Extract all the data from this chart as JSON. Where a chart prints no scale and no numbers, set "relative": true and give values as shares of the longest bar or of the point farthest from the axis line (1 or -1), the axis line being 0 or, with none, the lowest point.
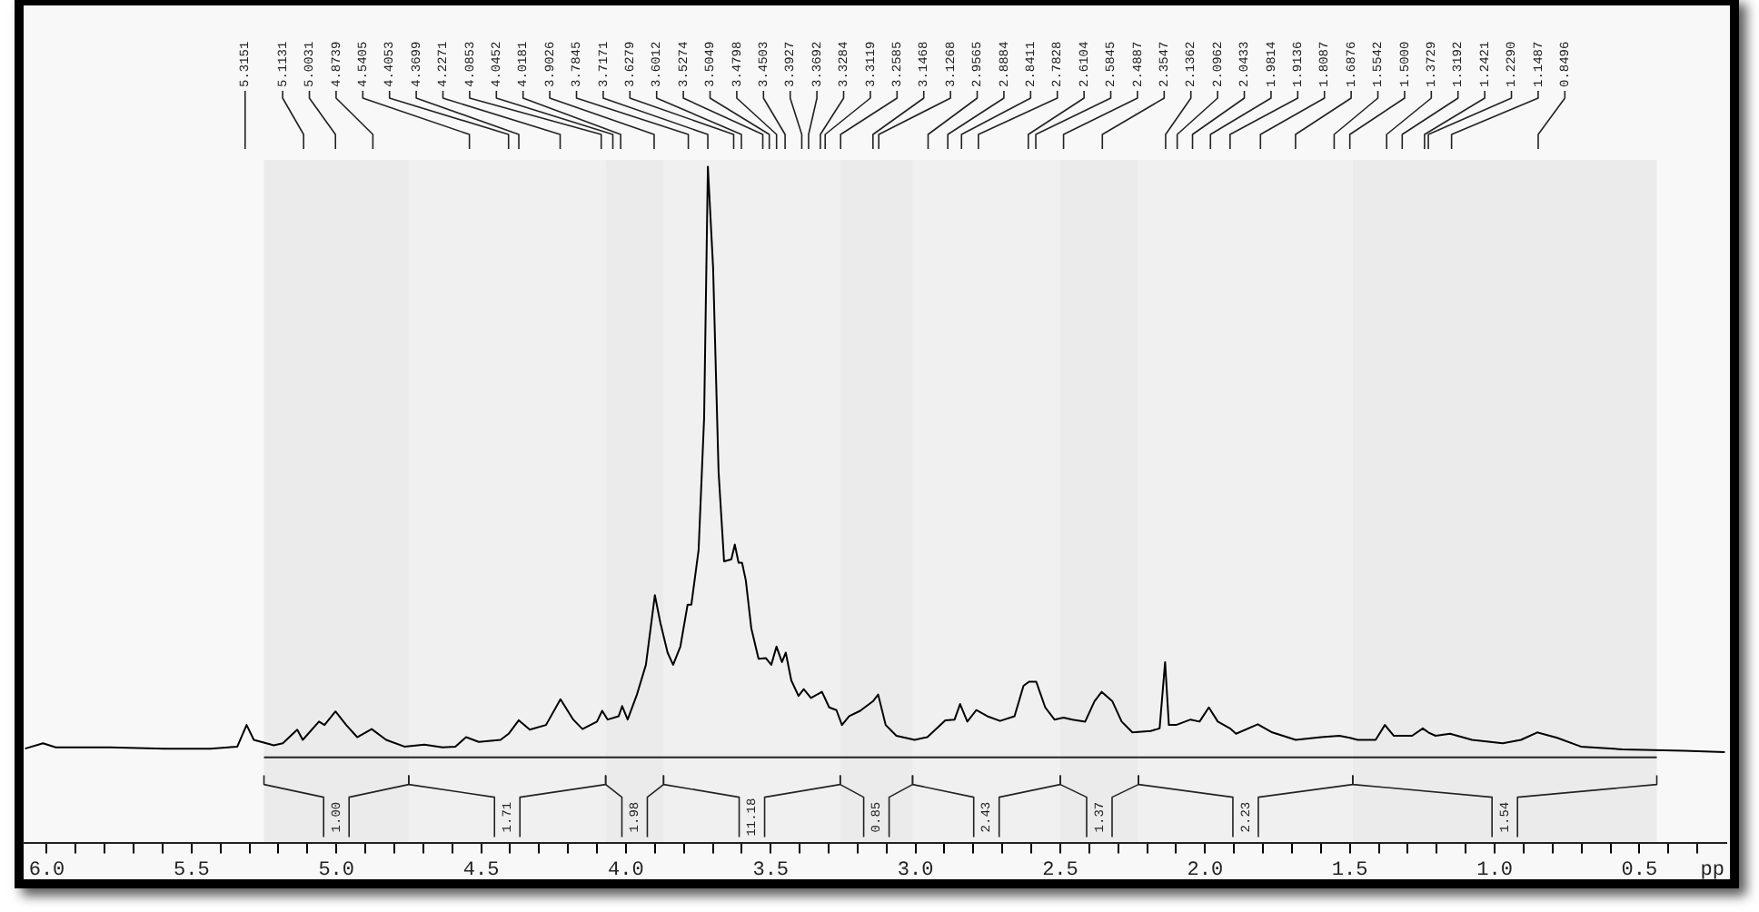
{
  "chart_data": {
    "type": "line",
    "relative": true,
    "series": [
      {
        "color": "#000000",
        "x": [
          6.075,
          6.013,
          5.969,
          5.781,
          5.592,
          5.436,
          5.373,
          5.342,
          5.31,
          5.285,
          5.216,
          5.185,
          5.135,
          5.116,
          5.06,
          5.041,
          5.003,
          4.966,
          4.928,
          4.878,
          4.828,
          4.765,
          4.696,
          4.633,
          4.589,
          4.552,
          4.508,
          4.433,
          4.405,
          4.37,
          4.332,
          4.276,
          4.226,
          4.182,
          4.15,
          4.1,
          4.082,
          4.063,
          4.025,
          4.013,
          3.994,
          3.962,
          3.931,
          3.9,
          3.881,
          3.856,
          3.837,
          3.812,
          3.787,
          3.774,
          3.749,
          3.73,
          3.717,
          3.699,
          3.68,
          3.661,
          3.636,
          3.624,
          3.611,
          3.599,
          3.586,
          3.567,
          3.542,
          3.517,
          3.498,
          3.48,
          3.461,
          3.448,
          3.429,
          3.404,
          3.386,
          3.361,
          3.323,
          3.298,
          3.273,
          3.254,
          3.229,
          3.191,
          3.147,
          3.129,
          3.103,
          3.066,
          3.003,
          2.959,
          2.897,
          2.865,
          2.846,
          2.821,
          2.79,
          2.752,
          2.708,
          2.658,
          2.627,
          2.608,
          2.583,
          2.552,
          2.52,
          2.489,
          2.458,
          2.414,
          2.382,
          2.357,
          2.32,
          2.288,
          2.251,
          2.188,
          2.157,
          2.138,
          2.125,
          2.1,
          2.05,
          2.019,
          1.987,
          1.956,
          1.914,
          1.893,
          1.818,
          1.768,
          1.687,
          1.599,
          1.536,
          1.5,
          1.473,
          1.411,
          1.379,
          1.348,
          1.319,
          1.285,
          1.248,
          1.229,
          1.204,
          1.154,
          1.078,
          0.972,
          0.909,
          0.853,
          0.784,
          0.702,
          0.558,
          0.345,
          0.205
        ],
        "values": [
          0.139,
          0.147,
          0.141,
          0.141,
          0.139,
          0.139,
          0.141,
          0.142,
          0.174,
          0.152,
          0.144,
          0.147,
          0.167,
          0.152,
          0.179,
          0.174,
          0.194,
          0.174,
          0.156,
          0.168,
          0.152,
          0.142,
          0.145,
          0.141,
          0.142,
          0.156,
          0.149,
          0.152,
          0.161,
          0.181,
          0.167,
          0.174,
          0.212,
          0.182,
          0.168,
          0.179,
          0.195,
          0.182,
          0.187,
          0.202,
          0.182,
          0.219,
          0.263,
          0.366,
          0.325,
          0.281,
          0.263,
          0.29,
          0.352,
          0.352,
          0.433,
          0.628,
          1.0,
          0.851,
          0.548,
          0.416,
          0.419,
          0.441,
          0.414,
          0.414,
          0.388,
          0.317,
          0.272,
          0.273,
          0.263,
          0.29,
          0.267,
          0.281,
          0.24,
          0.217,
          0.227,
          0.214,
          0.223,
          0.2,
          0.196,
          0.174,
          0.187,
          0.195,
          0.209,
          0.219,
          0.174,
          0.158,
          0.152,
          0.156,
          0.181,
          0.182,
          0.205,
          0.179,
          0.196,
          0.187,
          0.18,
          0.187,
          0.232,
          0.238,
          0.238,
          0.2,
          0.182,
          0.185,
          0.182,
          0.179,
          0.209,
          0.223,
          0.209,
          0.179,
          0.163,
          0.165,
          0.169,
          0.267,
          0.174,
          0.174,
          0.182,
          0.179,
          0.2,
          0.179,
          0.169,
          0.161,
          0.175,
          0.163,
          0.152,
          0.156,
          0.158,
          0.155,
          0.152,
          0.152,
          0.174,
          0.158,
          0.158,
          0.158,
          0.169,
          0.163,
          0.158,
          0.161,
          0.152,
          0.147,
          0.152,
          0.163,
          0.155,
          0.142,
          0.138,
          0.136,
          0.134
        ]
      },
      {
        "color": "#222222",
        "x": [
          5.25,
          0.44
        ],
        "values": [
          0.126,
          0.126
        ]
      }
    ],
    "xlim": [
      6.08,
      0.2
    ],
    "xticks": [
      {
        "value": 6,
        "label": "6.0"
      },
      {
        "value": 5.9,
        "label": null
      },
      {
        "value": 5.8,
        "label": null
      },
      {
        "value": 5.7,
        "label": null
      },
      {
        "value": 5.6,
        "label": null
      },
      {
        "value": 5.5,
        "label": "5.5"
      },
      {
        "value": 5.4,
        "label": null
      },
      {
        "value": 5.3,
        "label": null
      },
      {
        "value": 5.2,
        "label": null
      },
      {
        "value": 5.1,
        "label": null
      },
      {
        "value": 5,
        "label": "5.0"
      },
      {
        "value": 4.9,
        "label": null
      },
      {
        "value": 4.8,
        "label": null
      },
      {
        "value": 4.7,
        "label": null
      },
      {
        "value": 4.6,
        "label": null
      },
      {
        "value": 4.5,
        "label": "4.5"
      },
      {
        "value": 4.4,
        "label": null
      },
      {
        "value": 4.3,
        "label": null
      },
      {
        "value": 4.2,
        "label": null
      },
      {
        "value": 4.1,
        "label": null
      },
      {
        "value": 4,
        "label": "4.0"
      },
      {
        "value": 3.9,
        "label": null
      },
      {
        "value": 3.8,
        "label": null
      },
      {
        "value": 3.7,
        "label": null
      },
      {
        "value": 3.6,
        "label": null
      },
      {
        "value": 3.5,
        "label": "3.5"
      },
      {
        "value": 3.4,
        "label": null
      },
      {
        "value": 3.3,
        "label": null
      },
      {
        "value": 3.2,
        "label": null
      },
      {
        "value": 3.1,
        "label": null
      },
      {
        "value": 3,
        "label": "3.0"
      },
      {
        "value": 2.9,
        "label": null
      },
      {
        "value": 2.8,
        "label": null
      },
      {
        "value": 2.7,
        "label": null
      },
      {
        "value": 2.6,
        "label": null
      },
      {
        "value": 2.5,
        "label": "2.5"
      },
      {
        "value": 2.4,
        "label": null
      },
      {
        "value": 2.3,
        "label": null
      },
      {
        "value": 2.2,
        "label": null
      },
      {
        "value": 2.1,
        "label": null
      },
      {
        "value": 2,
        "label": "2.0"
      },
      {
        "value": 1.9,
        "label": null
      },
      {
        "value": 1.8,
        "label": null
      },
      {
        "value": 1.7,
        "label": null
      },
      {
        "value": 1.6,
        "label": null
      },
      {
        "value": 1.5,
        "label": "1.5"
      },
      {
        "value": 1.4,
        "label": null
      },
      {
        "value": 1.3,
        "label": null
      },
      {
        "value": 1.2,
        "label": null
      },
      {
        "value": 1.1,
        "label": null
      },
      {
        "value": 1,
        "label": "1.0"
      },
      {
        "value": 0.9,
        "label": null
      },
      {
        "value": 0.8,
        "label": null
      },
      {
        "value": 0.7,
        "label": null
      },
      {
        "value": 0.6,
        "label": null
      },
      {
        "value": 0.5,
        "label": "0.5"
      },
      {
        "value": 0.4,
        "label": null
      },
      {
        "value": 0.3,
        "label": null
      }
    ],
    "xlabel": "pp",
    "annotations": [
      {
        "text": "5.3151",
        "x": 5.3151
      },
      {
        "text": "5.1131",
        "x": 5.1131
      },
      {
        "text": "5.0031",
        "x": 5.0031
      },
      {
        "text": "4.8739",
        "x": 4.8739
      },
      {
        "text": "4.5405",
        "x": 4.5405
      },
      {
        "text": "4.4053",
        "x": 4.4053
      },
      {
        "text": "4.3699",
        "x": 4.3699
      },
      {
        "text": "4.2271",
        "x": 4.2271
      },
      {
        "text": "4.0853",
        "x": 4.0853
      },
      {
        "text": "4.0452",
        "x": 4.0452
      },
      {
        "text": "4.0181",
        "x": 4.0181
      },
      {
        "text": "3.9026",
        "x": 3.9026
      },
      {
        "text": "3.7845",
        "x": 3.7845
      },
      {
        "text": "3.7171",
        "x": 3.7171
      },
      {
        "text": "3.6279",
        "x": 3.6279
      },
      {
        "text": "3.6012",
        "x": 3.6012
      },
      {
        "text": "3.5274",
        "x": 3.5274
      },
      {
        "text": "3.5049",
        "x": 3.5049
      },
      {
        "text": "3.4798",
        "x": 3.4798
      },
      {
        "text": "3.4503",
        "x": 3.4503
      },
      {
        "text": "3.3927",
        "x": 3.3927
      },
      {
        "text": "3.3692",
        "x": 3.3692
      },
      {
        "text": "3.3284",
        "x": 3.3284
      },
      {
        "text": "3.3119",
        "x": 3.3119
      },
      {
        "text": "3.2585",
        "x": 3.2585
      },
      {
        "text": "3.1468",
        "x": 3.1468
      },
      {
        "text": "3.1268",
        "x": 3.1268
      },
      {
        "text": "2.9565",
        "x": 2.9565
      },
      {
        "text": "2.8884",
        "x": 2.8884
      },
      {
        "text": "2.8411",
        "x": 2.8411
      },
      {
        "text": "2.7828",
        "x": 2.7828
      },
      {
        "text": "2.6104",
        "x": 2.6104
      },
      {
        "text": "2.5845",
        "x": 2.5845
      },
      {
        "text": "2.4887",
        "x": 2.4887
      },
      {
        "text": "2.3547",
        "x": 2.3547
      },
      {
        "text": "2.1362",
        "x": 2.1362
      },
      {
        "text": "2.0962",
        "x": 2.0962
      },
      {
        "text": "2.0433",
        "x": 2.0433
      },
      {
        "text": "1.9814",
        "x": 1.9814
      },
      {
        "text": "1.9136",
        "x": 1.9136
      },
      {
        "text": "1.8087",
        "x": 1.8087
      },
      {
        "text": "1.6876",
        "x": 1.6876
      },
      {
        "text": "1.5542",
        "x": 1.5542
      },
      {
        "text": "1.5000",
        "x": 1.5
      },
      {
        "text": "1.3729",
        "x": 1.3729
      },
      {
        "text": "1.3192",
        "x": 1.3192
      },
      {
        "text": "1.2421",
        "x": 1.2421
      },
      {
        "text": "1.2290",
        "x": 1.229
      },
      {
        "text": "1.1487",
        "x": 1.1487
      },
      {
        "text": "0.8496",
        "x": 0.8496
      }
    ],
    "bands": [
      {
        "axis": "x",
        "from": 5.25,
        "to": 4.75,
        "label": "1.00"
      },
      {
        "axis": "x",
        "from": 4.75,
        "to": 4.07,
        "label": "1.71"
      },
      {
        "axis": "x",
        "from": 4.07,
        "to": 3.87,
        "label": "1.98"
      },
      {
        "axis": "x",
        "from": 3.87,
        "to": 3.26,
        "label": "11.18"
      },
      {
        "axis": "x",
        "from": 3.26,
        "to": 3.01,
        "label": "0.85"
      },
      {
        "axis": "x",
        "from": 3.01,
        "to": 2.5,
        "label": "2.43"
      },
      {
        "axis": "x",
        "from": 2.5,
        "to": 2.23,
        "label": "1.37"
      },
      {
        "axis": "x",
        "from": 2.23,
        "to": 1.49,
        "label": "2.23"
      },
      {
        "axis": "x",
        "from": 1.49,
        "to": 0.44,
        "label": "1.54"
      }
    ]
  }
}
